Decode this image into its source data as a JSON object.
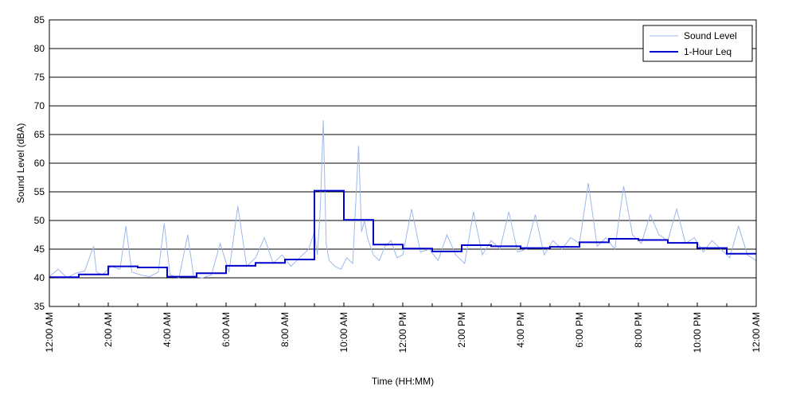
{
  "chart_data": {
    "type": "line",
    "title": "",
    "xlabel": "Time (HH:MM)",
    "ylabel": "Sound Level (dBA)",
    "xlim": [
      0,
      24
    ],
    "ylim": [
      35,
      85
    ],
    "y_ticks": [
      35,
      40,
      45,
      50,
      55,
      60,
      65,
      70,
      75,
      80,
      85
    ],
    "x_ticks": [
      0,
      2,
      4,
      6,
      8,
      10,
      12,
      14,
      16,
      18,
      20,
      22,
      24
    ],
    "x_tick_labels": [
      "12:00 AM",
      "2:00 AM",
      "4:00 AM",
      "6:00 AM",
      "8:00 AM",
      "10:00 AM",
      "12:00 PM",
      "2:00 PM",
      "4:00 PM",
      "6:00 PM",
      "8:00 PM",
      "10:00 PM",
      "12:00 AM"
    ],
    "grid": "horizontal",
    "legend": "top-right",
    "series": [
      {
        "name": "Sound Level",
        "color": "#9db8ec",
        "note": "1-minute-ish noisy samples; values approximate",
        "x": [
          0,
          0.3,
          0.6,
          0.9,
          1.2,
          1.5,
          1.6,
          1.8,
          2.1,
          2.4,
          2.6,
          2.8,
          3.1,
          3.4,
          3.7,
          3.9,
          4.1,
          4.4,
          4.7,
          4.9,
          5.2,
          5.5,
          5.8,
          6.1,
          6.4,
          6.7,
          7.0,
          7.3,
          7.6,
          7.9,
          8.2,
          8.5,
          8.8,
          9.0,
          9.1,
          9.2,
          9.3,
          9.4,
          9.5,
          9.7,
          9.9,
          10.1,
          10.3,
          10.5,
          10.6,
          10.7,
          10.8,
          11.0,
          11.2,
          11.4,
          11.6,
          11.8,
          12.0,
          12.3,
          12.6,
          12.9,
          13.2,
          13.5,
          13.8,
          14.1,
          14.4,
          14.7,
          15.0,
          15.3,
          15.6,
          15.9,
          16.2,
          16.5,
          16.8,
          17.1,
          17.4,
          17.7,
          18.0,
          18.3,
          18.6,
          18.9,
          19.2,
          19.5,
          19.8,
          20.1,
          20.4,
          20.7,
          21.0,
          21.3,
          21.6,
          21.9,
          22.2,
          22.5,
          22.8,
          23.1,
          23.4,
          23.7,
          24.0
        ],
        "values": [
          40.2,
          41.5,
          40.0,
          40.8,
          41.2,
          45.5,
          41.0,
          40.5,
          42.0,
          41.5,
          49.0,
          41.0,
          40.5,
          40.2,
          41.0,
          49.5,
          40.5,
          40.0,
          47.5,
          40.2,
          40.0,
          40.5,
          46.0,
          41.0,
          52.5,
          42.0,
          43.5,
          47.0,
          42.5,
          44.0,
          42.0,
          43.5,
          45.0,
          48.0,
          44.0,
          52.0,
          67.5,
          46.0,
          43.0,
          42.0,
          41.5,
          43.5,
          42.5,
          63.0,
          48.0,
          50.0,
          47.0,
          44.0,
          43.0,
          45.5,
          46.5,
          43.5,
          44.0,
          52.0,
          44.5,
          45.0,
          43.0,
          47.5,
          44.0,
          42.5,
          51.5,
          44.0,
          46.5,
          45.0,
          51.5,
          44.5,
          45.0,
          51.0,
          44.0,
          46.5,
          45.0,
          47.0,
          46.0,
          56.5,
          45.5,
          47.0,
          45.0,
          56.0,
          47.5,
          46.0,
          51.0,
          47.5,
          46.5,
          52.0,
          46.0,
          47.0,
          44.5,
          46.5,
          45.0,
          43.5,
          49.0,
          44.0,
          43.0
        ]
      },
      {
        "name": "1-Hour Leq",
        "color": "#0000cc",
        "x": [
          0,
          1,
          2,
          3,
          4,
          5,
          6,
          7,
          8,
          9,
          10,
          11,
          12,
          13,
          14,
          15,
          16,
          17,
          18,
          19,
          20,
          21,
          22,
          23
        ],
        "values": [
          40.1,
          40.6,
          42.0,
          41.8,
          40.2,
          40.8,
          42.1,
          42.6,
          43.2,
          55.2,
          50.1,
          45.8,
          45.1,
          44.6,
          45.7,
          45.5,
          45.2,
          45.4,
          46.2,
          46.8,
          46.6,
          46.1,
          45.2,
          44.2
        ]
      }
    ]
  }
}
